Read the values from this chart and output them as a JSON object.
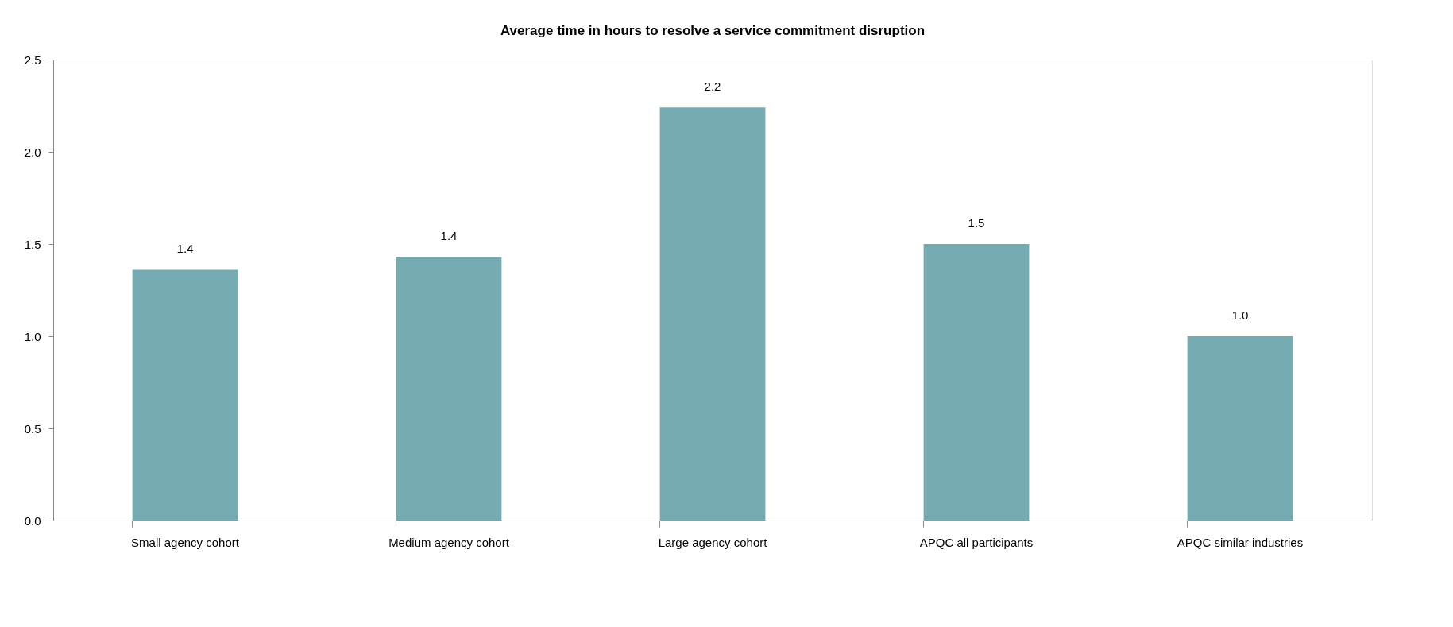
{
  "chart_data": {
    "type": "bar",
    "title": "Average time in hours to resolve a service commitment disruption",
    "categories": [
      "Small agency cohort",
      "Medium agency cohort",
      "Large agency cohort",
      "APQC all participants",
      "APQC similar industries"
    ],
    "values": [
      1.36,
      1.43,
      2.24,
      1.5,
      1.0
    ],
    "value_labels": [
      "1.4",
      "1.4",
      "2.2",
      "1.5",
      "1.0"
    ],
    "color": "#74aab0",
    "ylim": [
      0,
      2.5
    ],
    "yticks": [
      {
        "value": 0,
        "label": "0.0"
      },
      {
        "value": 0.5,
        "label": "0.5"
      },
      {
        "value": 1,
        "label": "1.0"
      },
      {
        "value": 1.5,
        "label": "1.5"
      },
      {
        "value": 2,
        "label": "2.0"
      },
      {
        "value": 2.5,
        "label": "2.5"
      }
    ],
    "grid": false
  }
}
